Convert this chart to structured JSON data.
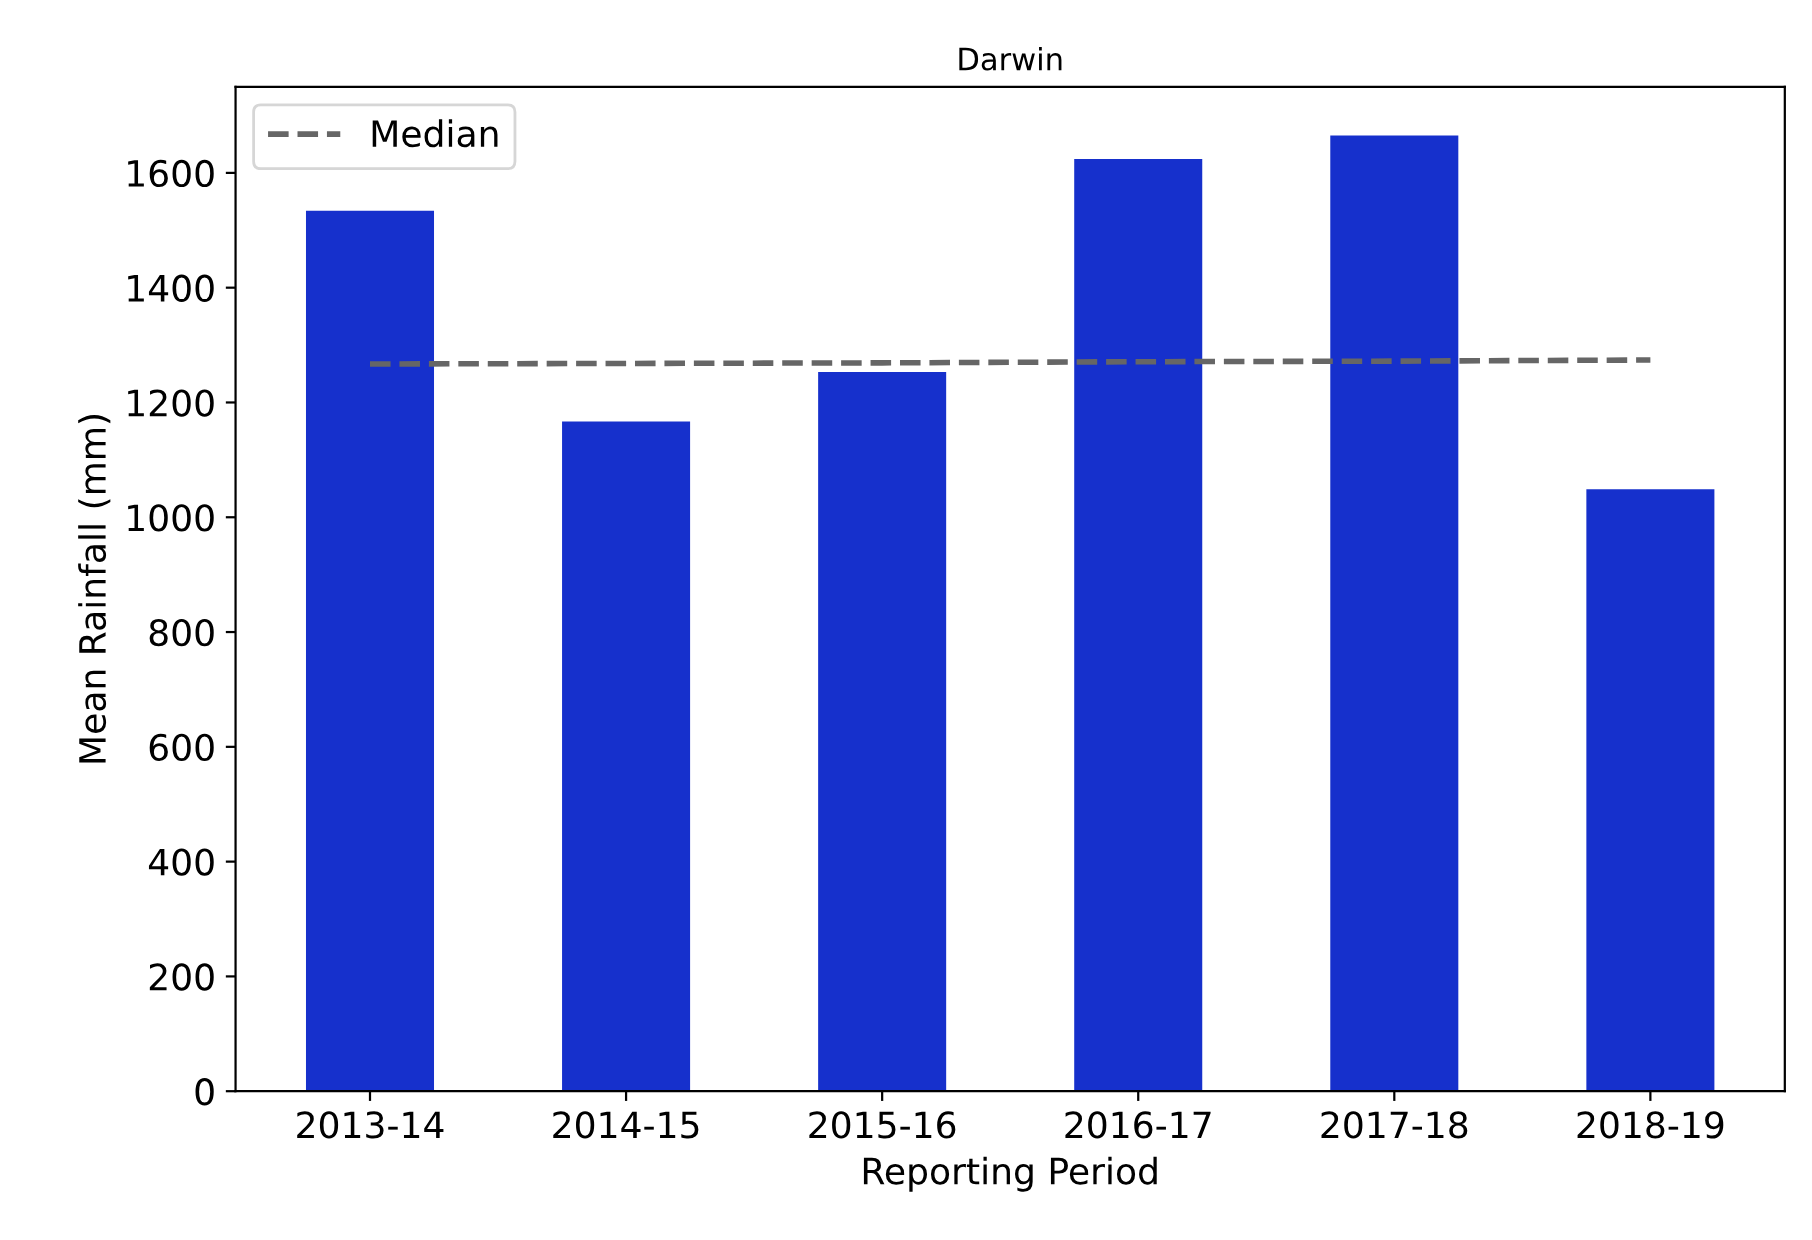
{
  "chart_data": {
    "type": "bar",
    "title": "Darwin",
    "xlabel": "Reporting Period",
    "ylabel": "Mean Rainfall (mm)",
    "categories": [
      "2013-14",
      "2014-15",
      "2015-16",
      "2016-17",
      "2017-18",
      "2018-19"
    ],
    "series": [
      {
        "color": "#1630cc",
        "values": [
          1534,
          1167,
          1253,
          1624,
          1665,
          1049
        ]
      },
      {
        "type": "line",
        "name": "Median",
        "color": "#666666",
        "line_style": "dashed",
        "marker": "none",
        "values": [
          1267,
          1268,
          1269,
          1271,
          1272,
          1274
        ]
      }
    ],
    "ylim": [
      0,
      1750
    ],
    "yticks": [
      0,
      200,
      400,
      600,
      800,
      1000,
      1200,
      1400,
      1600
    ],
    "grid": false,
    "legend": "top left"
  }
}
